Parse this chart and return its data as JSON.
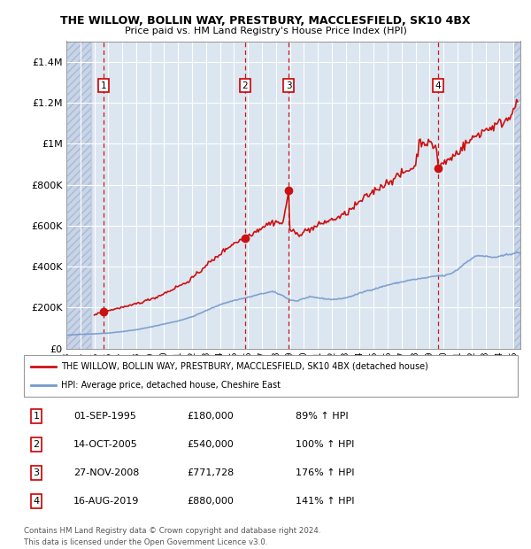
{
  "title": "THE WILLOW, BOLLIN WAY, PRESTBURY, MACCLESFIELD, SK10 4BX",
  "subtitle": "Price paid vs. HM Land Registry's House Price Index (HPI)",
  "ylim": [
    0,
    1500000
  ],
  "xlim_start": 1993.0,
  "xlim_end": 2025.5,
  "yticks": [
    0,
    200000,
    400000,
    600000,
    800000,
    1000000,
    1200000,
    1400000
  ],
  "ytick_labels": [
    "£0",
    "£200K",
    "£400K",
    "£600K",
    "£800K",
    "£1M",
    "£1.2M",
    "£1.4M"
  ],
  "xtick_years": [
    1993,
    1994,
    1995,
    1996,
    1997,
    1998,
    1999,
    2000,
    2001,
    2002,
    2003,
    2004,
    2005,
    2006,
    2007,
    2008,
    2009,
    2010,
    2011,
    2012,
    2013,
    2014,
    2015,
    2016,
    2017,
    2018,
    2019,
    2020,
    2021,
    2022,
    2023,
    2024,
    2025
  ],
  "sale_dates": [
    1995.67,
    2005.79,
    2008.91,
    2019.62
  ],
  "sale_prices": [
    180000,
    540000,
    771728,
    880000
  ],
  "sale_labels": [
    "1",
    "2",
    "3",
    "4"
  ],
  "sale_pct": [
    "89% ↑ HPI",
    "100% ↑ HPI",
    "176% ↑ HPI",
    "141% ↑ HPI"
  ],
  "sale_label_dates": [
    "01-SEP-1995",
    "14-OCT-2005",
    "27-NOV-2008",
    "16-AUG-2019"
  ],
  "sale_label_prices": [
    "£180,000",
    "£540,000",
    "£771,728",
    "£880,000"
  ],
  "hpi_color": "#7799cc",
  "property_color": "#cc1111",
  "hatch_color": "#c8d4e8",
  "grid_color": "#bbccdd",
  "plot_bg_color": "#dce6f0",
  "legend_property_label": "THE WILLOW, BOLLIN WAY, PRESTBURY, MACCLESFIELD, SK10 4BX (detached house)",
  "legend_hpi_label": "HPI: Average price, detached house, Cheshire East",
  "footer_text": "Contains HM Land Registry data © Crown copyright and database right 2024.\nThis data is licensed under the Open Government Licence v3.0."
}
